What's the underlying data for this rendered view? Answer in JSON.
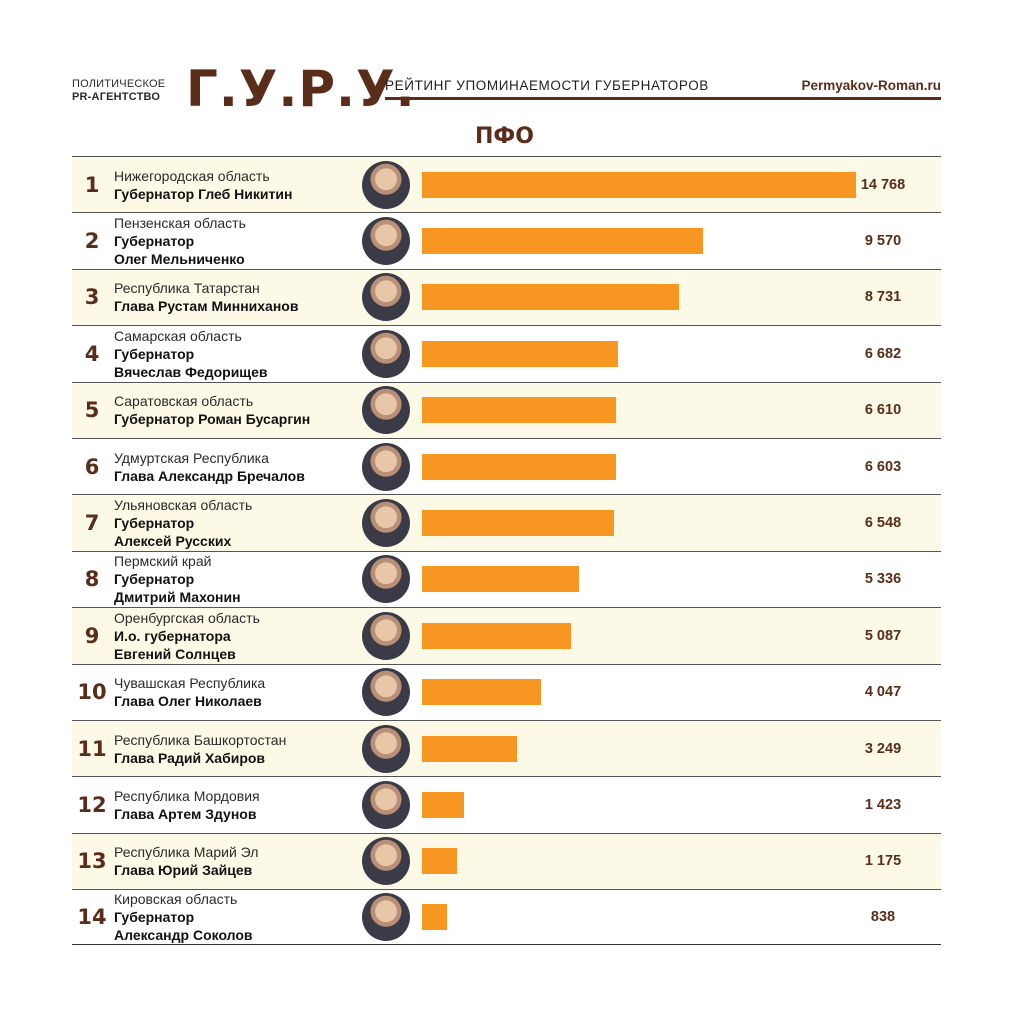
{
  "header": {
    "agency_line1": "ПОЛИТИЧЕСКОЕ",
    "agency_line2": "PR-АГЕНТСТВО",
    "logo": "Г.У.Р.У.",
    "subtitle": "РЕЙТИНГ УПОМИНАЕМОСТИ ГУБЕРНАТОРОВ",
    "site": "Permyakov-Roman.ru"
  },
  "region_title": "ПФО",
  "colors": {
    "brand": "#5a2d1b",
    "bar": "#f79721",
    "alt_row": "#fdf9e7"
  },
  "rows": [
    {
      "rank": "1",
      "region": "Нижегородская область",
      "position": "Губернатор Глеб Никитин",
      "position2": "",
      "value": "14 768",
      "num": 14768
    },
    {
      "rank": "2",
      "region": "Пензенская область",
      "position": "Губернатор",
      "position2": "Олег Мельниченко",
      "value": "9 570",
      "num": 9570
    },
    {
      "rank": "3",
      "region": "Республика Татарстан",
      "position": "Глава Рустам Минниханов",
      "position2": "",
      "value": "8 731",
      "num": 8731
    },
    {
      "rank": "4",
      "region": "Самарская область",
      "position": "Губернатор",
      "position2": "Вячеслав Федорищев",
      "value": "6 682",
      "num": 6682
    },
    {
      "rank": "5",
      "region": "Саратовская область",
      "position": "Губернатор Роман Бусаргин",
      "position2": "",
      "value": "6 610",
      "num": 6610
    },
    {
      "rank": "6",
      "region": "Удмуртская Республика",
      "position": "Глава Александр Бречалов",
      "position2": "",
      "value": "6 603",
      "num": 6603
    },
    {
      "rank": "7",
      "region": "Ульяновская область",
      "position": "Губернатор",
      "position2": "Алексей Русских",
      "value": "6 548",
      "num": 6548
    },
    {
      "rank": "8",
      "region": "Пермский край",
      "position": "Губернатор",
      "position2": "Дмитрий Махонин",
      "value": "5 336",
      "num": 5336
    },
    {
      "rank": "9",
      "region": "Оренбургская область",
      "position": "И.о. губернатора",
      "position2": "Евгений Солнцев",
      "value": "5 087",
      "num": 5087
    },
    {
      "rank": "10",
      "region": "Чувашская Республика",
      "position": "Глава Олег Николаев",
      "position2": "",
      "value": "4 047",
      "num": 4047
    },
    {
      "rank": "11",
      "region": "Республика Башкортостан",
      "position": "Глава Радий Хабиров",
      "position2": "",
      "value": "3 249",
      "num": 3249
    },
    {
      "rank": "12",
      "region": "Республика Мордовия",
      "position": "Глава Артем Здунов",
      "position2": "",
      "value": "1 423",
      "num": 1423
    },
    {
      "rank": "13",
      "region": "Республика Марий Эл",
      "position": "Глава Юрий Зайцев",
      "position2": "",
      "value": "1 175",
      "num": 1175
    },
    {
      "rank": "14",
      "region": "Кировская область",
      "position": "Губернатор",
      "position2": "Александр Соколов",
      "value": "838",
      "num": 838
    }
  ],
  "chart_data": {
    "type": "bar",
    "orientation": "horizontal",
    "title": "РЕЙТИНГ УПОМИНАЕМОСТИ ГУБЕРНАТОРОВ — ПФО",
    "categories": [
      "Нижегородская область",
      "Пензенская область",
      "Республика Татарстан",
      "Самарская область",
      "Саратовская область",
      "Удмуртская Республика",
      "Ульяновская область",
      "Пермский край",
      "Оренбургская область",
      "Чувашская Республика",
      "Республика Башкортостан",
      "Республика Мордовия",
      "Республика Марий Эл",
      "Кировская область"
    ],
    "values": [
      14768,
      9570,
      8731,
      6682,
      6610,
      6603,
      6548,
      5336,
      5087,
      4047,
      3249,
      1423,
      1175,
      838
    ],
    "xlabel": "",
    "ylabel": "",
    "grid": false,
    "legend": "none",
    "bar_color": "#f79721"
  }
}
